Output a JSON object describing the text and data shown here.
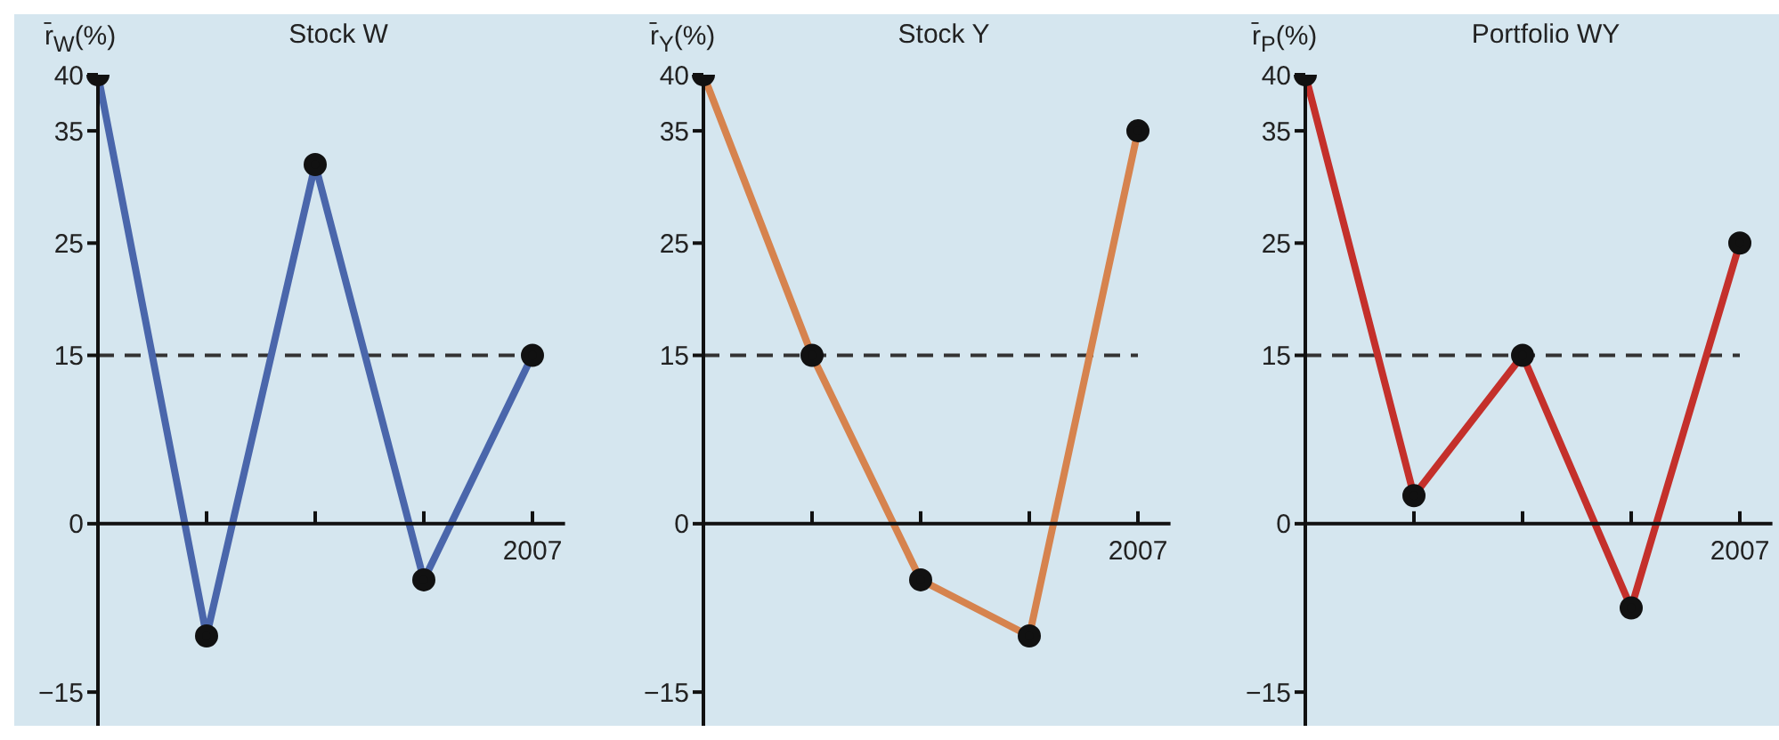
{
  "chart_data": [
    {
      "type": "line",
      "title": "Stock W",
      "ylabel": "r̄$_{W}$(%)",
      "categories": [
        null,
        null,
        null,
        null,
        "2007"
      ],
      "series": [
        {
          "color": "#4a66ab",
          "values": [
            40,
            -10,
            32,
            -5,
            15
          ]
        }
      ],
      "ylim": [
        -18,
        40
      ],
      "yticks": [
        -15,
        0,
        15,
        25,
        35,
        40
      ],
      "marker": "circle",
      "line_style": "solid",
      "ref_lines": [
        {
          "axis": "y",
          "value": 15,
          "line_style": "dashed",
          "color": "#333333"
        }
      ]
    },
    {
      "type": "line",
      "title": "Stock Y",
      "ylabel": "r̄$_{Y}$(%)",
      "categories": [
        null,
        null,
        null,
        null,
        "2007"
      ],
      "series": [
        {
          "color": "#d6834e",
          "values": [
            40,
            15,
            -5,
            -10,
            35
          ]
        }
      ],
      "ylim": [
        -18,
        40
      ],
      "yticks": [
        -15,
        0,
        15,
        25,
        35,
        40
      ],
      "marker": "circle",
      "line_style": "solid",
      "ref_lines": [
        {
          "axis": "y",
          "value": 15,
          "line_style": "dashed",
          "color": "#333333"
        }
      ]
    },
    {
      "type": "line",
      "title": "Portfolio WY",
      "ylabel": "r̄$_{P}$(%)",
      "categories": [
        null,
        null,
        null,
        null,
        "2007"
      ],
      "series": [
        {
          "color": "#c4302b",
          "values": [
            40,
            2.5,
            15,
            -7.5,
            25
          ]
        }
      ],
      "ylim": [
        -18,
        40
      ],
      "yticks": [
        -15,
        0,
        15,
        25,
        35,
        40
      ],
      "marker": "circle",
      "line_style": "solid",
      "ref_lines": [
        {
          "axis": "y",
          "value": 15,
          "line_style": "dashed",
          "color": "#333333"
        }
      ]
    }
  ]
}
